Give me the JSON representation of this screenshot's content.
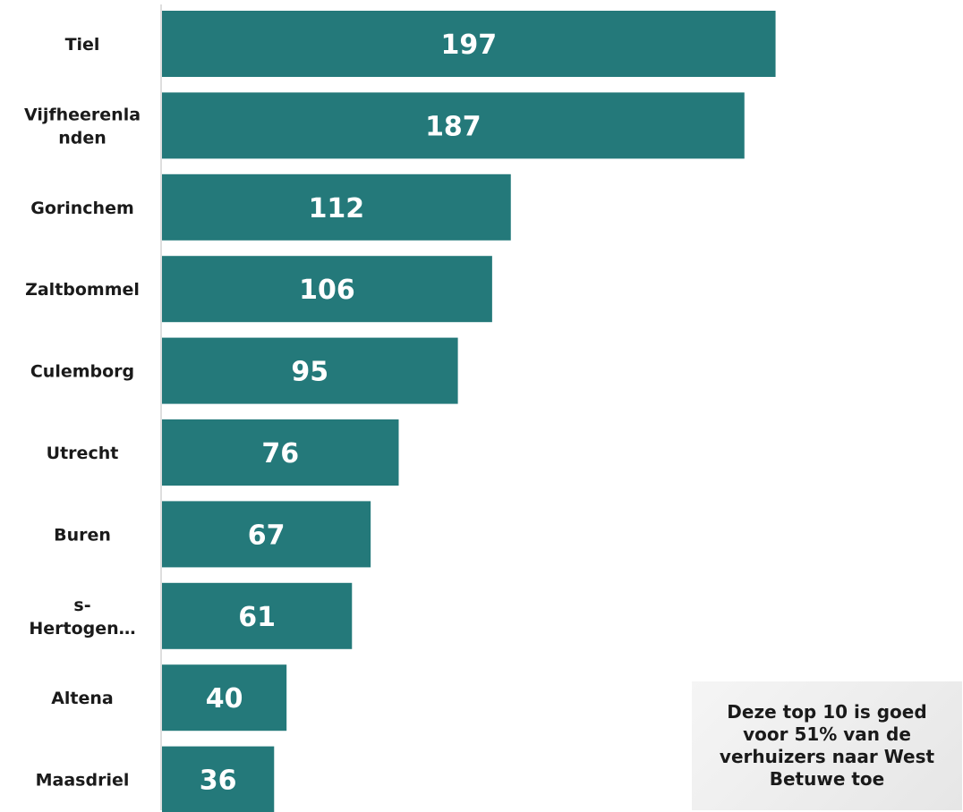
{
  "chart_data": {
    "type": "bar",
    "orientation": "horizontal",
    "categories": [
      [
        "Tiel"
      ],
      [
        "Vijfheerenla",
        "nden"
      ],
      [
        "Gorinchem"
      ],
      [
        "Zaltbommel"
      ],
      [
        "Culemborg"
      ],
      [
        "Utrecht"
      ],
      [
        "Buren"
      ],
      [
        "s-",
        "Hertogen…"
      ],
      [
        "Altena"
      ],
      [
        "Maasdriel"
      ]
    ],
    "values": [
      197,
      187,
      112,
      106,
      95,
      76,
      67,
      61,
      40,
      36
    ],
    "xlim": [
      0,
      250
    ],
    "grid": false,
    "bar_color": "#24797a",
    "label_color": "#ffffff"
  },
  "note": {
    "text": "Deze top 10 is goed\nvoor 51% van de\nverhuizers naar West\nBetuwe toe"
  }
}
